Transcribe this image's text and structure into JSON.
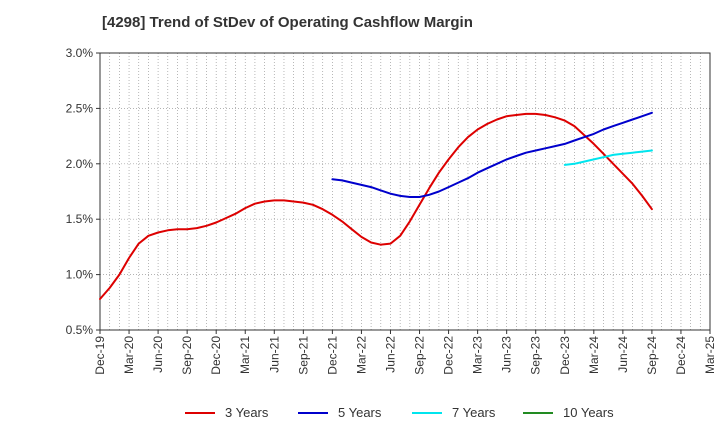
{
  "title": "[4298]  Trend of StDev of Operating Cashflow Margin",
  "chart_data": {
    "type": "line",
    "title": "[4298]  Trend of StDev of Operating Cashflow Margin",
    "xlabel": "",
    "ylabel": "",
    "x_ticks": [
      "Dec-19",
      "Mar-20",
      "Jun-20",
      "Sep-20",
      "Dec-20",
      "Mar-21",
      "Jun-21",
      "Sep-21",
      "Dec-21",
      "Mar-22",
      "Jun-22",
      "Sep-22",
      "Dec-22",
      "Mar-23",
      "Jun-23",
      "Sep-23",
      "Dec-23",
      "Mar-24",
      "Jun-24",
      "Sep-24",
      "Dec-24",
      "Mar-25"
    ],
    "y_ticks": [
      "0.5%",
      "1.0%",
      "1.5%",
      "2.0%",
      "2.5%",
      "3.0%"
    ],
    "ylim": [
      0.5,
      3.0
    ],
    "y_unit": "%",
    "grid": true,
    "legend_position": "bottom",
    "series": [
      {
        "name": "3 Years",
        "color": "#dd0000",
        "points": [
          [
            "2019-12",
            0.78
          ],
          [
            "2020-01",
            0.88
          ],
          [
            "2020-02",
            1.0
          ],
          [
            "2020-03",
            1.15
          ],
          [
            "2020-04",
            1.28
          ],
          [
            "2020-05",
            1.35
          ],
          [
            "2020-06",
            1.38
          ],
          [
            "2020-07",
            1.4
          ],
          [
            "2020-08",
            1.41
          ],
          [
            "2020-09",
            1.41
          ],
          [
            "2020-10",
            1.42
          ],
          [
            "2020-11",
            1.44
          ],
          [
            "2020-12",
            1.47
          ],
          [
            "2021-01",
            1.51
          ],
          [
            "2021-02",
            1.55
          ],
          [
            "2021-03",
            1.6
          ],
          [
            "2021-04",
            1.64
          ],
          [
            "2021-05",
            1.66
          ],
          [
            "2021-06",
            1.67
          ],
          [
            "2021-07",
            1.67
          ],
          [
            "2021-08",
            1.66
          ],
          [
            "2021-09",
            1.65
          ],
          [
            "2021-10",
            1.63
          ],
          [
            "2021-11",
            1.59
          ],
          [
            "2021-12",
            1.54
          ],
          [
            "2022-01",
            1.48
          ],
          [
            "2022-02",
            1.41
          ],
          [
            "2022-03",
            1.34
          ],
          [
            "2022-04",
            1.29
          ],
          [
            "2022-05",
            1.27
          ],
          [
            "2022-06",
            1.28
          ],
          [
            "2022-07",
            1.35
          ],
          [
            "2022-08",
            1.48
          ],
          [
            "2022-09",
            1.63
          ],
          [
            "2022-10",
            1.78
          ],
          [
            "2022-11",
            1.92
          ],
          [
            "2022-12",
            2.04
          ],
          [
            "2023-01",
            2.15
          ],
          [
            "2023-02",
            2.24
          ],
          [
            "2023-03",
            2.31
          ],
          [
            "2023-04",
            2.36
          ],
          [
            "2023-05",
            2.4
          ],
          [
            "2023-06",
            2.43
          ],
          [
            "2023-07",
            2.44
          ],
          [
            "2023-08",
            2.45
          ],
          [
            "2023-09",
            2.45
          ],
          [
            "2023-10",
            2.44
          ],
          [
            "2023-11",
            2.42
          ],
          [
            "2023-12",
            2.39
          ],
          [
            "2024-01",
            2.34
          ],
          [
            "2024-02",
            2.26
          ],
          [
            "2024-03",
            2.18
          ],
          [
            "2024-04",
            2.09
          ],
          [
            "2024-05",
            2.0
          ],
          [
            "2024-06",
            1.91
          ],
          [
            "2024-07",
            1.82
          ],
          [
            "2024-08",
            1.71
          ],
          [
            "2024-09",
            1.59
          ]
        ]
      },
      {
        "name": "5 Years",
        "color": "#0000cc",
        "points": [
          [
            "2021-12",
            1.86
          ],
          [
            "2022-01",
            1.85
          ],
          [
            "2022-02",
            1.83
          ],
          [
            "2022-03",
            1.81
          ],
          [
            "2022-04",
            1.79
          ],
          [
            "2022-05",
            1.76
          ],
          [
            "2022-06",
            1.73
          ],
          [
            "2022-07",
            1.71
          ],
          [
            "2022-08",
            1.7
          ],
          [
            "2022-09",
            1.7
          ],
          [
            "2022-10",
            1.72
          ],
          [
            "2022-11",
            1.75
          ],
          [
            "2022-12",
            1.79
          ],
          [
            "2023-01",
            1.83
          ],
          [
            "2023-02",
            1.87
          ],
          [
            "2023-03",
            1.92
          ],
          [
            "2023-04",
            1.96
          ],
          [
            "2023-05",
            2.0
          ],
          [
            "2023-06",
            2.04
          ],
          [
            "2023-07",
            2.07
          ],
          [
            "2023-08",
            2.1
          ],
          [
            "2023-09",
            2.12
          ],
          [
            "2023-10",
            2.14
          ],
          [
            "2023-11",
            2.16
          ],
          [
            "2023-12",
            2.18
          ],
          [
            "2024-01",
            2.21
          ],
          [
            "2024-02",
            2.24
          ],
          [
            "2024-03",
            2.27
          ],
          [
            "2024-04",
            2.31
          ],
          [
            "2024-05",
            2.34
          ],
          [
            "2024-06",
            2.37
          ],
          [
            "2024-07",
            2.4
          ],
          [
            "2024-08",
            2.43
          ],
          [
            "2024-09",
            2.46
          ]
        ]
      },
      {
        "name": "7 Years",
        "color": "#00e5ee",
        "points": [
          [
            "2023-12",
            1.99
          ],
          [
            "2024-01",
            2.0
          ],
          [
            "2024-02",
            2.02
          ],
          [
            "2024-03",
            2.04
          ],
          [
            "2024-04",
            2.06
          ],
          [
            "2024-05",
            2.08
          ],
          [
            "2024-06",
            2.09
          ],
          [
            "2024-07",
            2.1
          ],
          [
            "2024-08",
            2.11
          ],
          [
            "2024-09",
            2.12
          ]
        ]
      },
      {
        "name": "10 Years",
        "color": "#228b22",
        "points": []
      }
    ]
  }
}
